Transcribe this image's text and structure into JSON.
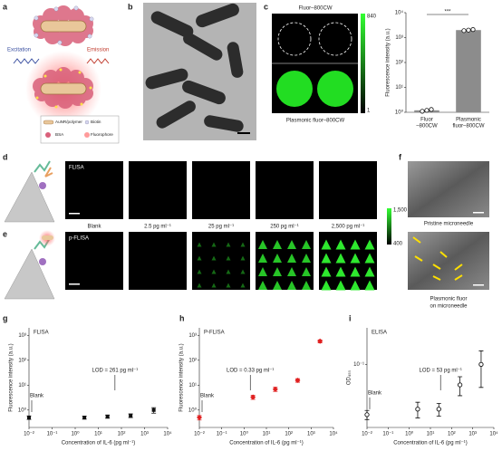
{
  "panel_labels": [
    "a",
    "b",
    "c",
    "d",
    "e",
    "f",
    "g",
    "h",
    "i"
  ],
  "schematic": {
    "excitation": "Excitation",
    "emission": "Emission",
    "legend": [
      "AuNR/polymer",
      "Biotin",
      "BSA",
      "Fluorophore"
    ]
  },
  "fluor_images": {
    "top_label": "Fluor–800CW",
    "bottom_label": "Plasmonic fluor–800CW",
    "colorbar": [
      "840",
      "1"
    ]
  },
  "assay_images": {
    "rows": [
      "FLISA",
      "p-FLISA"
    ],
    "columns": [
      "Blank",
      "2.5 pg ml⁻¹",
      "25 pg ml⁻¹",
      "250 pg ml⁻¹",
      "2,500 pg ml⁻¹"
    ],
    "colorbar": [
      "1,500",
      "400"
    ]
  },
  "microneedle": {
    "top_caption": "Pristine microneedle",
    "bottom_caption": [
      "Plasmonic fluor",
      "on microneedle"
    ]
  },
  "chart_data": [
    {
      "type": "bar",
      "ylabel": "Fluorescence intensity (a.u.)",
      "categories": [
        [
          "Fluor",
          "–800CW"
        ],
        [
          "Plasmonic",
          "fluor–800CW"
        ]
      ],
      "values": [
        1.2,
        2000
      ],
      "points": [
        [
          1.1,
          1.2,
          1.3
        ],
        [
          1900,
          2000,
          2100
        ]
      ],
      "significance": "***",
      "color": "#8c8c8c",
      "log_y": true,
      "ylim": [
        1,
        10000
      ],
      "yticks": [
        {
          "value": 1,
          "label": "10⁰"
        },
        {
          "value": 10,
          "label": "10¹"
        },
        {
          "value": 100,
          "label": "10²"
        },
        {
          "value": 1000,
          "label": "10³"
        },
        {
          "value": 10000,
          "label": "10⁴"
        }
      ]
    },
    {
      "type": "scatter",
      "title": "FLISA",
      "ylabel": "Fluorescence intensity (a.u.)",
      "xlabel": "Concentration of IL-6 (pg ml⁻¹)",
      "x": [
        0.01,
        2.5,
        25,
        250,
        2500
      ],
      "values": [
        0.5,
        0.5,
        0.55,
        0.6,
        1.0
      ],
      "errors": [
        0.08,
        0.07,
        0.08,
        0.1,
        0.25
      ],
      "blank_label": "Blank",
      "lod_label": "LOD = 261 pg ml⁻¹",
      "color": "#111111",
      "marker": "square",
      "log_x": true,
      "log_y": true,
      "xlim": [
        0.01,
        10000
      ],
      "ylim": [
        0.2,
        2000
      ],
      "xticks": [
        {
          "value": 0.01,
          "label": "10⁻²"
        },
        {
          "value": 0.1,
          "label": "10⁻¹"
        },
        {
          "value": 1,
          "label": "10⁰"
        },
        {
          "value": 10,
          "label": "10¹"
        },
        {
          "value": 100,
          "label": "10²"
        },
        {
          "value": 1000,
          "label": "10³"
        },
        {
          "value": 10000,
          "label": "10⁴"
        }
      ],
      "yticks": [
        {
          "value": 1,
          "label": "10⁰"
        },
        {
          "value": 10,
          "label": "10¹"
        },
        {
          "value": 100,
          "label": "10²"
        },
        {
          "value": 1000,
          "label": "10³"
        }
      ]
    },
    {
      "type": "scatter",
      "title": "P-FLISA",
      "ylabel": "Fluorescence intensity (a.u.)",
      "xlabel": "Concentration of IL-6 (pg ml⁻¹)",
      "x": [
        0.01,
        2.5,
        25,
        250,
        2500
      ],
      "values": [
        0.5,
        3.3,
        6.9,
        15.6,
        580
      ],
      "errors": [
        0.1,
        0.6,
        1.3,
        2.5,
        80
      ],
      "blank_label": "Blank",
      "lod_label": "LOD = 0.33 pg ml⁻¹",
      "color": "#e02020",
      "marker": "diamond",
      "log_x": true,
      "log_y": true,
      "xlim": [
        0.01,
        10000
      ],
      "ylim": [
        0.2,
        2000
      ],
      "xticks": [
        {
          "value": 0.01,
          "label": "10⁻²"
        },
        {
          "value": 0.1,
          "label": "10⁻¹"
        },
        {
          "value": 1,
          "label": "10⁰"
        },
        {
          "value": 10,
          "label": "10¹"
        },
        {
          "value": 100,
          "label": "10²"
        },
        {
          "value": 1000,
          "label": "10³"
        },
        {
          "value": 10000,
          "label": "10⁴"
        }
      ],
      "yticks": [
        {
          "value": 1,
          "label": "10⁰"
        },
        {
          "value": 10,
          "label": "10¹"
        },
        {
          "value": 100,
          "label": "10²"
        },
        {
          "value": 1000,
          "label": "10³"
        }
      ]
    },
    {
      "type": "scatter",
      "title": "ELISA",
      "ylabel": "OD₄₅₀",
      "xlabel": "Concentration of IL-6 (pg ml⁻¹)",
      "x": [
        0.01,
        2.5,
        25,
        250,
        2500
      ],
      "values": [
        0.022,
        0.026,
        0.026,
        0.054,
        0.1
      ],
      "errors": [
        0.003,
        0.006,
        0.005,
        0.015,
        0.05
      ],
      "blank_label": "Blank",
      "lod_label": "LOD = 53 pg ml⁻¹",
      "color": "#111111",
      "marker": "circle-open",
      "log_x": true,
      "log_y": true,
      "xlim": [
        0.01,
        10000
      ],
      "ylim": [
        0.015,
        0.3
      ],
      "xticks": [
        {
          "value": 0.01,
          "label": "10⁻²"
        },
        {
          "value": 0.1,
          "label": "10⁻¹"
        },
        {
          "value": 1,
          "label": "10⁰"
        },
        {
          "value": 10,
          "label": "10¹"
        },
        {
          "value": 100,
          "label": "10²"
        },
        {
          "value": 1000,
          "label": "10³"
        },
        {
          "value": 10000,
          "label": "10⁴"
        }
      ],
      "yticks": [
        {
          "value": 0.1,
          "label": "10⁻¹"
        }
      ]
    }
  ]
}
